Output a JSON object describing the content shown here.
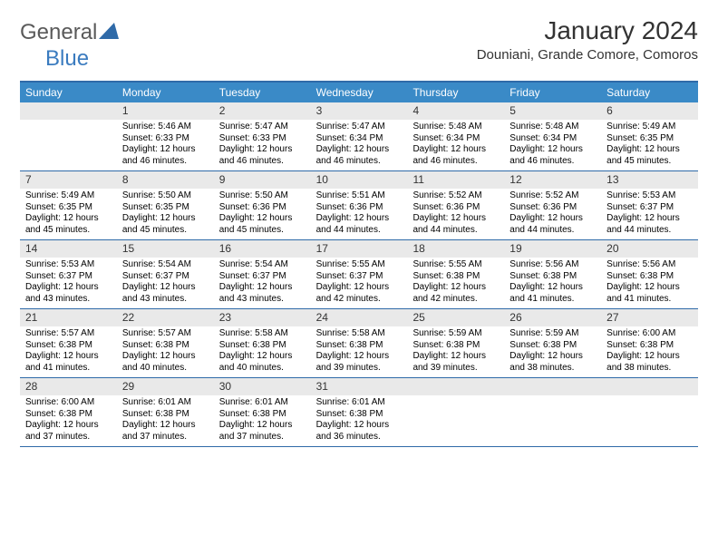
{
  "logo": {
    "text1": "General",
    "text2": "Blue",
    "tri_color": "#2f6aa8"
  },
  "header": {
    "month_title": "January 2024",
    "location": "Douniani, Grande Comore, Comoros"
  },
  "colors": {
    "header_bar": "#3a8ac7",
    "rule": "#2f6aa8",
    "daynum_bg": "#e9e9e9"
  },
  "day_names": [
    "Sunday",
    "Monday",
    "Tuesday",
    "Wednesday",
    "Thursday",
    "Friday",
    "Saturday"
  ],
  "weeks": [
    [
      {
        "n": "",
        "sunrise": "",
        "sunset": "",
        "day1": "",
        "day2": ""
      },
      {
        "n": "1",
        "sunrise": "Sunrise: 5:46 AM",
        "sunset": "Sunset: 6:33 PM",
        "day1": "Daylight: 12 hours",
        "day2": "and 46 minutes."
      },
      {
        "n": "2",
        "sunrise": "Sunrise: 5:47 AM",
        "sunset": "Sunset: 6:33 PM",
        "day1": "Daylight: 12 hours",
        "day2": "and 46 minutes."
      },
      {
        "n": "3",
        "sunrise": "Sunrise: 5:47 AM",
        "sunset": "Sunset: 6:34 PM",
        "day1": "Daylight: 12 hours",
        "day2": "and 46 minutes."
      },
      {
        "n": "4",
        "sunrise": "Sunrise: 5:48 AM",
        "sunset": "Sunset: 6:34 PM",
        "day1": "Daylight: 12 hours",
        "day2": "and 46 minutes."
      },
      {
        "n": "5",
        "sunrise": "Sunrise: 5:48 AM",
        "sunset": "Sunset: 6:34 PM",
        "day1": "Daylight: 12 hours",
        "day2": "and 46 minutes."
      },
      {
        "n": "6",
        "sunrise": "Sunrise: 5:49 AM",
        "sunset": "Sunset: 6:35 PM",
        "day1": "Daylight: 12 hours",
        "day2": "and 45 minutes."
      }
    ],
    [
      {
        "n": "7",
        "sunrise": "Sunrise: 5:49 AM",
        "sunset": "Sunset: 6:35 PM",
        "day1": "Daylight: 12 hours",
        "day2": "and 45 minutes."
      },
      {
        "n": "8",
        "sunrise": "Sunrise: 5:50 AM",
        "sunset": "Sunset: 6:35 PM",
        "day1": "Daylight: 12 hours",
        "day2": "and 45 minutes."
      },
      {
        "n": "9",
        "sunrise": "Sunrise: 5:50 AM",
        "sunset": "Sunset: 6:36 PM",
        "day1": "Daylight: 12 hours",
        "day2": "and 45 minutes."
      },
      {
        "n": "10",
        "sunrise": "Sunrise: 5:51 AM",
        "sunset": "Sunset: 6:36 PM",
        "day1": "Daylight: 12 hours",
        "day2": "and 44 minutes."
      },
      {
        "n": "11",
        "sunrise": "Sunrise: 5:52 AM",
        "sunset": "Sunset: 6:36 PM",
        "day1": "Daylight: 12 hours",
        "day2": "and 44 minutes."
      },
      {
        "n": "12",
        "sunrise": "Sunrise: 5:52 AM",
        "sunset": "Sunset: 6:36 PM",
        "day1": "Daylight: 12 hours",
        "day2": "and 44 minutes."
      },
      {
        "n": "13",
        "sunrise": "Sunrise: 5:53 AM",
        "sunset": "Sunset: 6:37 PM",
        "day1": "Daylight: 12 hours",
        "day2": "and 44 minutes."
      }
    ],
    [
      {
        "n": "14",
        "sunrise": "Sunrise: 5:53 AM",
        "sunset": "Sunset: 6:37 PM",
        "day1": "Daylight: 12 hours",
        "day2": "and 43 minutes."
      },
      {
        "n": "15",
        "sunrise": "Sunrise: 5:54 AM",
        "sunset": "Sunset: 6:37 PM",
        "day1": "Daylight: 12 hours",
        "day2": "and 43 minutes."
      },
      {
        "n": "16",
        "sunrise": "Sunrise: 5:54 AM",
        "sunset": "Sunset: 6:37 PM",
        "day1": "Daylight: 12 hours",
        "day2": "and 43 minutes."
      },
      {
        "n": "17",
        "sunrise": "Sunrise: 5:55 AM",
        "sunset": "Sunset: 6:37 PM",
        "day1": "Daylight: 12 hours",
        "day2": "and 42 minutes."
      },
      {
        "n": "18",
        "sunrise": "Sunrise: 5:55 AM",
        "sunset": "Sunset: 6:38 PM",
        "day1": "Daylight: 12 hours",
        "day2": "and 42 minutes."
      },
      {
        "n": "19",
        "sunrise": "Sunrise: 5:56 AM",
        "sunset": "Sunset: 6:38 PM",
        "day1": "Daylight: 12 hours",
        "day2": "and 41 minutes."
      },
      {
        "n": "20",
        "sunrise": "Sunrise: 5:56 AM",
        "sunset": "Sunset: 6:38 PM",
        "day1": "Daylight: 12 hours",
        "day2": "and 41 minutes."
      }
    ],
    [
      {
        "n": "21",
        "sunrise": "Sunrise: 5:57 AM",
        "sunset": "Sunset: 6:38 PM",
        "day1": "Daylight: 12 hours",
        "day2": "and 41 minutes."
      },
      {
        "n": "22",
        "sunrise": "Sunrise: 5:57 AM",
        "sunset": "Sunset: 6:38 PM",
        "day1": "Daylight: 12 hours",
        "day2": "and 40 minutes."
      },
      {
        "n": "23",
        "sunrise": "Sunrise: 5:58 AM",
        "sunset": "Sunset: 6:38 PM",
        "day1": "Daylight: 12 hours",
        "day2": "and 40 minutes."
      },
      {
        "n": "24",
        "sunrise": "Sunrise: 5:58 AM",
        "sunset": "Sunset: 6:38 PM",
        "day1": "Daylight: 12 hours",
        "day2": "and 39 minutes."
      },
      {
        "n": "25",
        "sunrise": "Sunrise: 5:59 AM",
        "sunset": "Sunset: 6:38 PM",
        "day1": "Daylight: 12 hours",
        "day2": "and 39 minutes."
      },
      {
        "n": "26",
        "sunrise": "Sunrise: 5:59 AM",
        "sunset": "Sunset: 6:38 PM",
        "day1": "Daylight: 12 hours",
        "day2": "and 38 minutes."
      },
      {
        "n": "27",
        "sunrise": "Sunrise: 6:00 AM",
        "sunset": "Sunset: 6:38 PM",
        "day1": "Daylight: 12 hours",
        "day2": "and 38 minutes."
      }
    ],
    [
      {
        "n": "28",
        "sunrise": "Sunrise: 6:00 AM",
        "sunset": "Sunset: 6:38 PM",
        "day1": "Daylight: 12 hours",
        "day2": "and 37 minutes."
      },
      {
        "n": "29",
        "sunrise": "Sunrise: 6:01 AM",
        "sunset": "Sunset: 6:38 PM",
        "day1": "Daylight: 12 hours",
        "day2": "and 37 minutes."
      },
      {
        "n": "30",
        "sunrise": "Sunrise: 6:01 AM",
        "sunset": "Sunset: 6:38 PM",
        "day1": "Daylight: 12 hours",
        "day2": "and 37 minutes."
      },
      {
        "n": "31",
        "sunrise": "Sunrise: 6:01 AM",
        "sunset": "Sunset: 6:38 PM",
        "day1": "Daylight: 12 hours",
        "day2": "and 36 minutes."
      },
      {
        "n": "",
        "sunrise": "",
        "sunset": "",
        "day1": "",
        "day2": ""
      },
      {
        "n": "",
        "sunrise": "",
        "sunset": "",
        "day1": "",
        "day2": ""
      },
      {
        "n": "",
        "sunrise": "",
        "sunset": "",
        "day1": "",
        "day2": ""
      }
    ]
  ]
}
